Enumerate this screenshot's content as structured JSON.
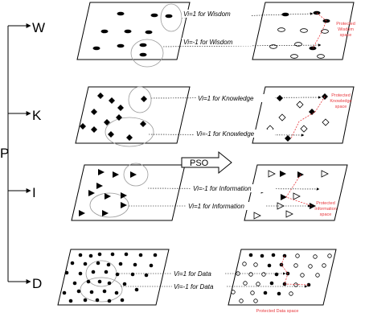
{
  "colors": {
    "ink": "#000000",
    "note": "#e8383d",
    "ellipse": "#9a9a9a",
    "bg": "#ffffff"
  },
  "levels": {
    "w": "W",
    "k": "K",
    "i": "I",
    "d": "D",
    "p": "P"
  },
  "arrows": {
    "w_top": "Vi=1 for Wisdom",
    "w_bot": "Vi=-1 for Wisdom",
    "k_top": "Vi=1 for Knowledge",
    "k_bot": "Vi=-1 for Knowledge",
    "i_top": "Vi=-1 for Information",
    "i_bot": "Vi=1 for Information",
    "d_top": "Vi=1 for Data",
    "d_bot": "Vi=-1 for Data"
  },
  "pso_label": "PSO",
  "protected": {
    "wisdom": [
      "Protected",
      "Wisdom",
      "space"
    ],
    "knowledge": [
      "Protected",
      "Knowledge",
      "space"
    ],
    "information": [
      "Protected",
      "Information",
      "space"
    ],
    "data": "Protected Data space"
  }
}
